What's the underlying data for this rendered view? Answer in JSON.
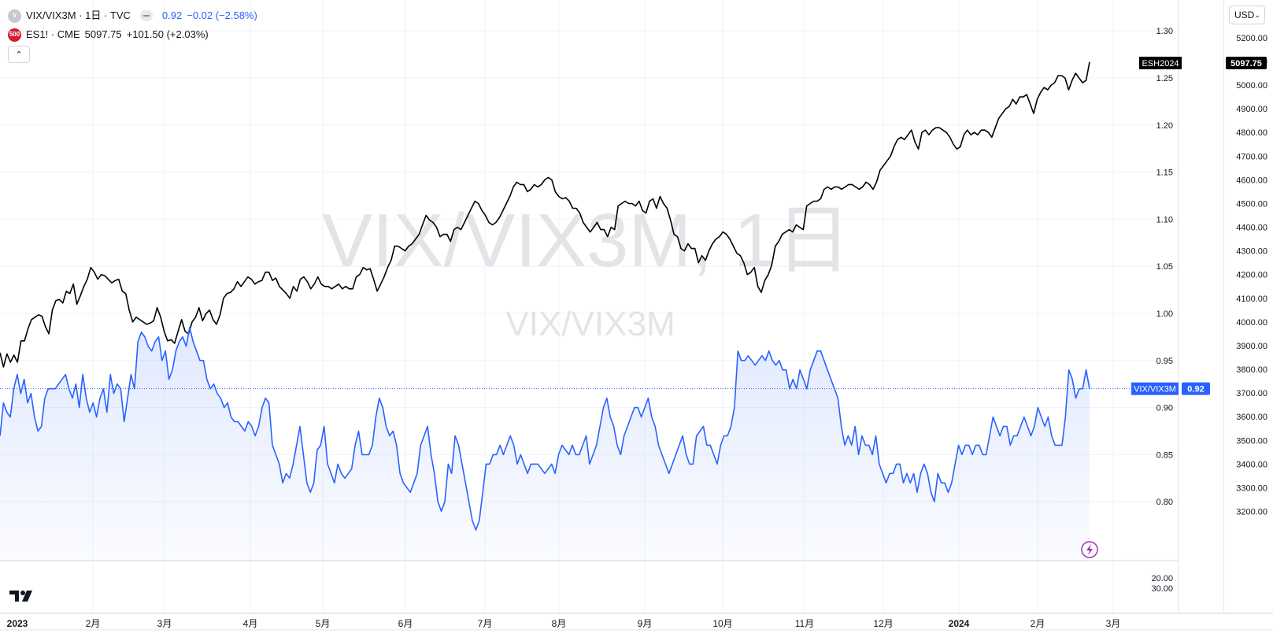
{
  "legend": {
    "vix_badge": "V",
    "vix_title": "VIX/VIX3M · 1日 · TVC",
    "vix_value": "0.92",
    "vix_change": "−0.02 (−2.58%)",
    "es_badge": "500",
    "es_title": "ES1! · CME",
    "es_value": "5097.75",
    "es_change": "+101.50 (+2.03%)"
  },
  "currency": "USD",
  "watermark": {
    "main": "VIX/VIX3M, 1日",
    "sub": "VIX/VIX3M"
  },
  "colors": {
    "vix_line": "#2962ff",
    "es_line": "#000000",
    "grid": "#f0f3fa",
    "es_badge": "#d8192f"
  },
  "icons": [
    "chevron-up-icon",
    "chevron-down-icon",
    "lightning-icon",
    "tradingview-logo"
  ],
  "chart_data": {
    "type": "line",
    "x_ticks": [
      "2023",
      "2月",
      "3月",
      "4月",
      "5月",
      "6月",
      "7月",
      "8月",
      "9月",
      "10月",
      "11月",
      "12月",
      "2024",
      "2月",
      "3月"
    ],
    "y_left_ticks": [
      "1.30",
      "1.25",
      "1.20",
      "1.15",
      "1.10",
      "1.05",
      "1.00",
      "0.95",
      "0.90",
      "0.85",
      "0.80"
    ],
    "y_right_ticks": [
      "5200.00",
      "5100.00",
      "5000.00",
      "4900.00",
      "4800.00",
      "4700.00",
      "4600.00",
      "4500.00",
      "4400.00",
      "4300.00",
      "4200.00",
      "4100.00",
      "4000.00",
      "3900.00",
      "3800.00",
      "3700.00",
      "3600.00",
      "3500.00",
      "3400.00",
      "3300.00",
      "3200.00"
    ],
    "y_lower_ticks": [
      "20.00",
      "30.00"
    ],
    "last_labels": {
      "es_name": "ESH2024",
      "es_value": "5097.75",
      "vix_name": "VIX/VIX3M",
      "vix_value": "0.92"
    },
    "series": [
      {
        "name": "ES1!",
        "axis": "right",
        "y": [
          3870,
          3810,
          3865,
          3830,
          3860,
          3830,
          3920,
          3920,
          3970,
          4010,
          4020,
          4030,
          4025,
          3980,
          3950,
          4050,
          4090,
          4095,
          4080,
          4130,
          4120,
          4160,
          4075,
          4110,
          4150,
          4180,
          4230,
          4210,
          4180,
          4200,
          4195,
          4180,
          4165,
          4175,
          4180,
          4130,
          4120,
          4050,
          4000,
          4020,
          4010,
          4000,
          3990,
          3995,
          4005,
          4060,
          4020,
          3960,
          3920,
          3925,
          3910,
          3960,
          4010,
          3960,
          3950,
          4000,
          4020,
          4060,
          4005,
          4035,
          4050,
          4010,
          3990,
          4030,
          4100,
          4120,
          4125,
          4140,
          4170,
          4150,
          4170,
          4190,
          4180,
          4160,
          4170,
          4175,
          4210,
          4210,
          4175,
          4185,
          4150,
          4135,
          4120,
          4100,
          4150,
          4130,
          4180,
          4190,
          4170,
          4140,
          4160,
          4190,
          4160,
          4150,
          4150,
          4140,
          4150,
          4160,
          4140,
          4150,
          4140,
          4140,
          4190,
          4200,
          4230,
          4220,
          4225,
          4180,
          4130,
          4160,
          4190,
          4230,
          4260,
          4320,
          4320,
          4310,
          4300,
          4320,
          4330,
          4350,
          4370,
          4410,
          4450,
          4430,
          4420,
          4400,
          4360,
          4370,
          4370,
          4340,
          4390,
          4400,
          4390,
          4420,
          4450,
          4480,
          4510,
          4500,
          4470,
          4450,
          4420,
          4410,
          4420,
          4440,
          4470,
          4500,
          4530,
          4570,
          4590,
          4580,
          4580,
          4550,
          4560,
          4580,
          4570,
          4580,
          4600,
          4610,
          4600,
          4550,
          4530,
          4520,
          4525,
          4510,
          4480,
          4480,
          4460,
          4420,
          4400,
          4380,
          4400,
          4420,
          4390,
          4390,
          4360,
          4400,
          4390,
          4490,
          4500,
          4510,
          4500,
          4500,
          4490,
          4510,
          4470,
          4460,
          4510,
          4520,
          4480,
          4530,
          4500,
          4480,
          4430,
          4370,
          4360,
          4310,
          4300,
          4330,
          4310,
          4310,
          4250,
          4280,
          4260,
          4300,
          4330,
          4350,
          4360,
          4380,
          4370,
          4350,
          4320,
          4290,
          4280,
          4250,
          4200,
          4210,
          4230,
          4150,
          4125,
          4175,
          4200,
          4240,
          4320,
          4340,
          4370,
          4380,
          4390,
          4380,
          4410,
          4400,
          4390,
          4490,
          4500,
          4510,
          4510,
          4520,
          4560,
          4570,
          4560,
          4570,
          4570,
          4560,
          4570,
          4580,
          4580,
          4570,
          4560,
          4570,
          4590,
          4580,
          4560,
          4590,
          4640,
          4660,
          4680,
          4700,
          4740,
          4770,
          4780,
          4770,
          4790,
          4810,
          4760,
          4730,
          4800,
          4810,
          4790,
          4810,
          4820,
          4820,
          4810,
          4800,
          4780,
          4750,
          4730,
          4740,
          4790,
          4810,
          4790,
          4800,
          4790,
          4810,
          4810,
          4800,
          4780,
          4820,
          4860,
          4880,
          4900,
          4910,
          4940,
          4920,
          4950,
          4950,
          4960,
          4920,
          4880,
          4940,
          4970,
          4990,
          4980,
          5000,
          5010,
          5040,
          5040,
          5030,
          4980,
          5020,
          5050,
          5030,
          5010,
          5020,
          5097.75
        ]
      },
      {
        "name": "VIX/VIX3M",
        "axis": "left",
        "y": [
          0.87,
          0.905,
          0.895,
          0.89,
          0.92,
          0.935,
          0.915,
          0.93,
          0.905,
          0.915,
          0.89,
          0.875,
          0.88,
          0.91,
          0.92,
          0.92,
          0.92,
          0.925,
          0.93,
          0.935,
          0.92,
          0.91,
          0.925,
          0.9,
          0.935,
          0.91,
          0.895,
          0.905,
          0.89,
          0.91,
          0.92,
          0.895,
          0.935,
          0.915,
          0.925,
          0.92,
          0.885,
          0.91,
          0.935,
          0.92,
          0.97,
          0.98,
          0.975,
          0.965,
          0.96,
          0.97,
          0.975,
          0.95,
          0.96,
          0.93,
          0.94,
          0.96,
          0.97,
          0.975,
          0.965,
          0.985,
          0.97,
          0.96,
          0.95,
          0.95,
          0.93,
          0.92,
          0.925,
          0.915,
          0.91,
          0.9,
          0.905,
          0.89,
          0.885,
          0.885,
          0.88,
          0.875,
          0.885,
          0.88,
          0.87,
          0.88,
          0.9,
          0.91,
          0.905,
          0.86,
          0.85,
          0.84,
          0.82,
          0.83,
          0.825,
          0.84,
          0.86,
          0.88,
          0.85,
          0.82,
          0.81,
          0.82,
          0.855,
          0.86,
          0.88,
          0.84,
          0.83,
          0.82,
          0.84,
          0.83,
          0.825,
          0.83,
          0.835,
          0.86,
          0.875,
          0.85,
          0.85,
          0.85,
          0.86,
          0.89,
          0.91,
          0.9,
          0.88,
          0.87,
          0.875,
          0.86,
          0.83,
          0.82,
          0.815,
          0.81,
          0.82,
          0.83,
          0.86,
          0.87,
          0.88,
          0.85,
          0.83,
          0.8,
          0.79,
          0.8,
          0.84,
          0.83,
          0.87,
          0.86,
          0.84,
          0.82,
          0.8,
          0.78,
          0.77,
          0.78,
          0.81,
          0.84,
          0.84,
          0.85,
          0.85,
          0.86,
          0.85,
          0.86,
          0.87,
          0.86,
          0.84,
          0.85,
          0.84,
          0.83,
          0.84,
          0.84,
          0.84,
          0.835,
          0.83,
          0.835,
          0.84,
          0.83,
          0.85,
          0.86,
          0.855,
          0.85,
          0.86,
          0.85,
          0.85,
          0.86,
          0.87,
          0.84,
          0.85,
          0.86,
          0.88,
          0.9,
          0.91,
          0.89,
          0.88,
          0.86,
          0.85,
          0.87,
          0.88,
          0.89,
          0.9,
          0.9,
          0.89,
          0.9,
          0.91,
          0.89,
          0.88,
          0.86,
          0.85,
          0.84,
          0.83,
          0.84,
          0.85,
          0.86,
          0.87,
          0.85,
          0.84,
          0.84,
          0.87,
          0.875,
          0.88,
          0.86,
          0.86,
          0.85,
          0.84,
          0.86,
          0.87,
          0.87,
          0.88,
          0.9,
          0.96,
          0.95,
          0.95,
          0.955,
          0.95,
          0.945,
          0.95,
          0.955,
          0.95,
          0.96,
          0.95,
          0.945,
          0.95,
          0.94,
          0.94,
          0.92,
          0.93,
          0.92,
          0.94,
          0.93,
          0.92,
          0.94,
          0.95,
          0.96,
          0.96,
          0.95,
          0.94,
          0.93,
          0.92,
          0.91,
          0.88,
          0.86,
          0.87,
          0.86,
          0.88,
          0.85,
          0.87,
          0.86,
          0.86,
          0.85,
          0.87,
          0.84,
          0.83,
          0.82,
          0.83,
          0.83,
          0.84,
          0.84,
          0.82,
          0.83,
          0.82,
          0.83,
          0.81,
          0.83,
          0.84,
          0.83,
          0.81,
          0.8,
          0.83,
          0.82,
          0.82,
          0.81,
          0.82,
          0.84,
          0.86,
          0.85,
          0.86,
          0.86,
          0.85,
          0.86,
          0.86,
          0.85,
          0.85,
          0.87,
          0.89,
          0.88,
          0.87,
          0.88,
          0.88,
          0.86,
          0.87,
          0.87,
          0.88,
          0.89,
          0.88,
          0.87,
          0.88,
          0.9,
          0.89,
          0.88,
          0.89,
          0.87,
          0.86,
          0.86,
          0.86,
          0.89,
          0.94,
          0.93,
          0.91,
          0.92,
          0.92,
          0.94,
          0.92
        ]
      }
    ]
  }
}
